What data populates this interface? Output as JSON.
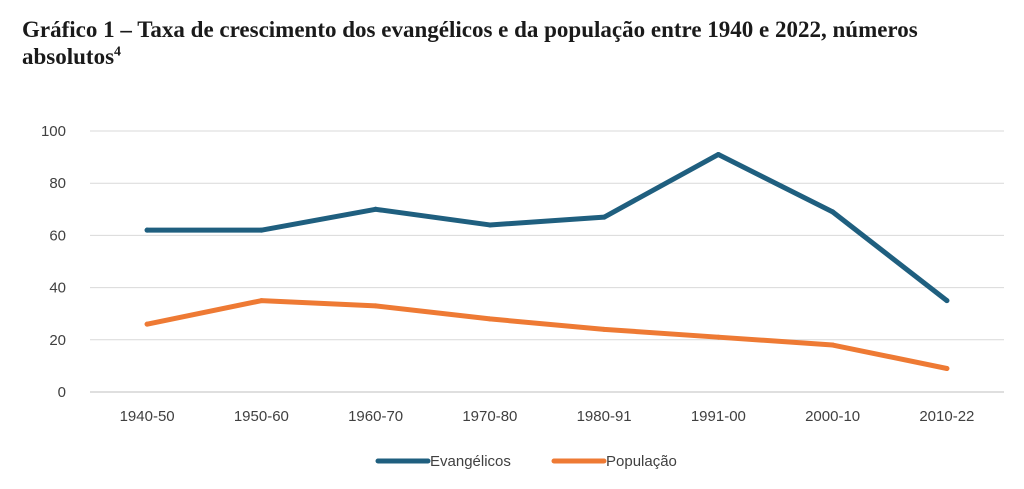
{
  "chart_data": {
    "type": "line",
    "title": "Gráfico 1 – Taxa de crescimento dos evangélicos e da população entre 1940 e 2022, números absolutos",
    "title_superscript": "4",
    "xlabel": "",
    "ylabel": "",
    "categories": [
      "1940-50",
      "1950-60",
      "1960-70",
      "1970-80",
      "1980-91",
      "1991-00",
      "2000-10",
      "2010-22"
    ],
    "series": [
      {
        "name": "Evangélicos",
        "color": "#1f5f7f",
        "values": [
          62,
          62,
          70,
          64,
          67,
          91,
          69,
          35
        ]
      },
      {
        "name": "População",
        "color": "#ee7a34",
        "values": [
          26,
          35,
          33,
          28,
          24,
          21,
          18,
          9
        ]
      }
    ],
    "ylim": [
      0,
      100
    ],
    "yticks": [
      0,
      20,
      40,
      60,
      80,
      100
    ],
    "grid": true,
    "legend_position": "bottom"
  }
}
